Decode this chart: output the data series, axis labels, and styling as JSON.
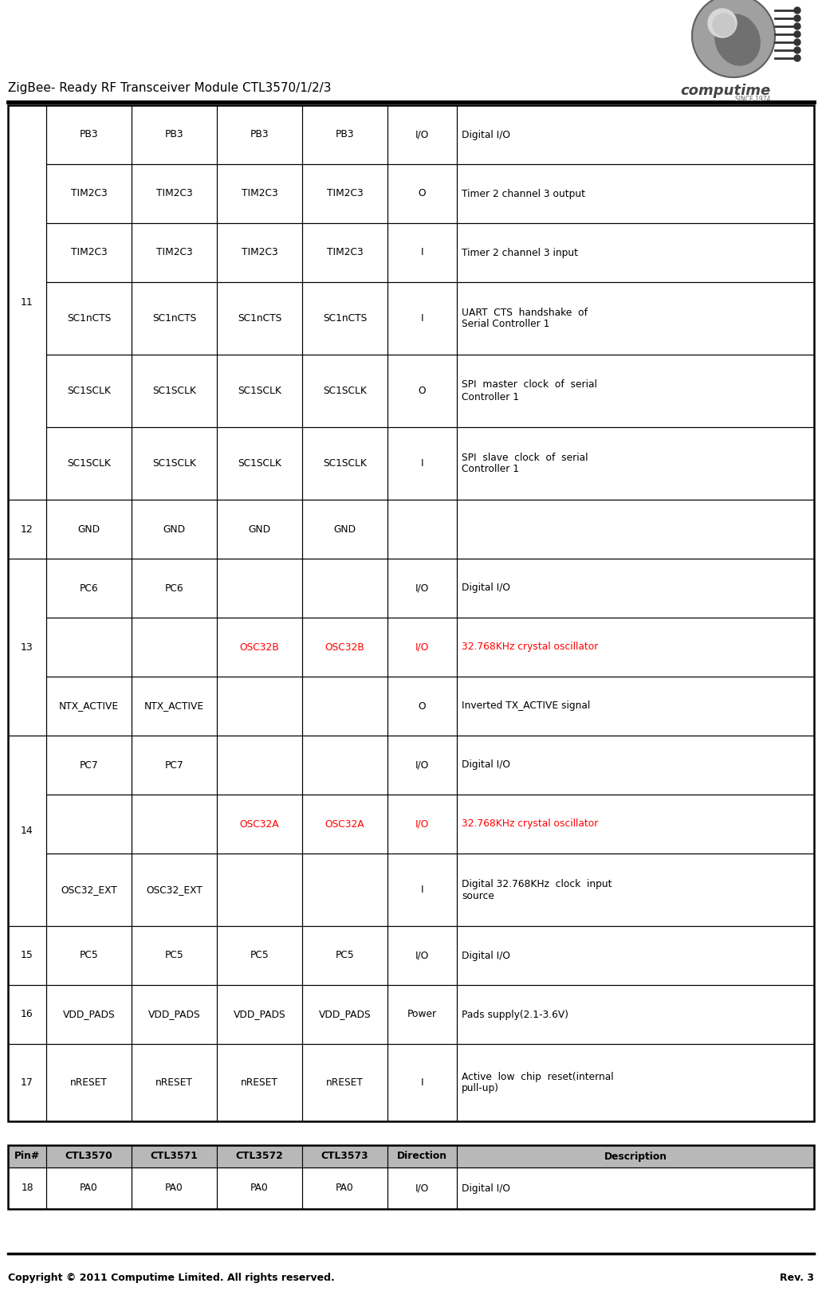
{
  "title": "ZigBee- Ready RF Transceiver Module CTL3570/1/2/3",
  "footer_left": "Copyright © 2011 Computime Limited. All rights reserved.",
  "footer_right": "Rev. 3",
  "rows": [
    {
      "pin": "11",
      "cells": [
        {
          "ctl3570": "PB3",
          "ctl3571": "PB3",
          "ctl3572": "PB3",
          "ctl3573": "PB3",
          "dir": "I/O",
          "desc": "Digital I/O",
          "color": "black"
        },
        {
          "ctl3570": "TIM2C3",
          "ctl3571": "TIM2C3",
          "ctl3572": "TIM2C3",
          "ctl3573": "TIM2C3",
          "dir": "O",
          "desc": "Timer 2 channel 3 output",
          "color": "black"
        },
        {
          "ctl3570": "TIM2C3",
          "ctl3571": "TIM2C3",
          "ctl3572": "TIM2C3",
          "ctl3573": "TIM2C3",
          "dir": "I",
          "desc": "Timer 2 channel 3 input",
          "color": "black"
        },
        {
          "ctl3570": "SC1nCTS",
          "ctl3571": "SC1nCTS",
          "ctl3572": "SC1nCTS",
          "ctl3573": "SC1nCTS",
          "dir": "I",
          "desc": "UART  CTS  handshake  of\nSerial Controller 1",
          "color": "black"
        },
        {
          "ctl3570": "SC1SCLK",
          "ctl3571": "SC1SCLK",
          "ctl3572": "SC1SCLK",
          "ctl3573": "SC1SCLK",
          "dir": "O",
          "desc": "SPI  master  clock  of  serial\nController 1",
          "color": "black"
        },
        {
          "ctl3570": "SC1SCLK",
          "ctl3571": "SC1SCLK",
          "ctl3572": "SC1SCLK",
          "ctl3573": "SC1SCLK",
          "dir": "I",
          "desc": "SPI  slave  clock  of  serial\nController 1",
          "color": "black"
        }
      ]
    },
    {
      "pin": "12",
      "cells": [
        {
          "ctl3570": "GND",
          "ctl3571": "GND",
          "ctl3572": "GND",
          "ctl3573": "GND",
          "dir": "",
          "desc": "",
          "color": "black"
        }
      ]
    },
    {
      "pin": "13",
      "cells": [
        {
          "ctl3570": "PC6",
          "ctl3571": "PC6",
          "ctl3572": "",
          "ctl3573": "",
          "dir": "I/O",
          "desc": "Digital I/O",
          "color": "black"
        },
        {
          "ctl3570": "",
          "ctl3571": "",
          "ctl3572": "OSC32B",
          "ctl3573": "OSC32B",
          "dir": "I/O",
          "desc": "32.768KHz crystal oscillator",
          "color": "red"
        },
        {
          "ctl3570": "NTX_ACTIVE",
          "ctl3571": "NTX_ACTIVE",
          "ctl3572": "",
          "ctl3573": "",
          "dir": "O",
          "desc": "Inverted TX_ACTIVE signal",
          "color": "black"
        }
      ]
    },
    {
      "pin": "14",
      "cells": [
        {
          "ctl3570": "PC7",
          "ctl3571": "PC7",
          "ctl3572": "",
          "ctl3573": "",
          "dir": "I/O",
          "desc": "Digital I/O",
          "color": "black"
        },
        {
          "ctl3570": "",
          "ctl3571": "",
          "ctl3572": "OSC32A",
          "ctl3573": "OSC32A",
          "dir": "I/O",
          "desc": "32.768KHz crystal oscillator",
          "color": "red"
        },
        {
          "ctl3570": "OSC32_EXT",
          "ctl3571": "OSC32_EXT",
          "ctl3572": "",
          "ctl3573": "",
          "dir": "I",
          "desc": "Digital 32.768KHz  clock  input\nsource",
          "color": "black"
        }
      ]
    },
    {
      "pin": "15",
      "cells": [
        {
          "ctl3570": "PC5",
          "ctl3571": "PC5",
          "ctl3572": "PC5",
          "ctl3573": "PC5",
          "dir": "I/O",
          "desc": "Digital I/O",
          "color": "black"
        }
      ]
    },
    {
      "pin": "16",
      "cells": [
        {
          "ctl3570": "VDD_PADS",
          "ctl3571": "VDD_PADS",
          "ctl3572": "VDD_PADS",
          "ctl3573": "VDD_PADS",
          "dir": "Power",
          "desc": "Pads supply(2.1-3.6V)",
          "color": "black"
        }
      ]
    },
    {
      "pin": "17",
      "cells": [
        {
          "ctl3570": "nRESET",
          "ctl3571": "nRESET",
          "ctl3572": "nRESET",
          "ctl3573": "nRESET",
          "dir": "I",
          "desc": "Active  low  chip  reset(internal\npull-up)",
          "color": "black"
        }
      ]
    }
  ],
  "bottom_header": [
    "Pin#",
    "CTL3570",
    "CTL3571",
    "CTL3572",
    "CTL3573",
    "Direction",
    "Description"
  ],
  "bottom_rows": [
    {
      "pin": "18",
      "cells": [
        {
          "ctl3570": "PA0",
          "ctl3571": "PA0",
          "ctl3572": "PA0",
          "ctl3573": "PA0",
          "dir": "I/O",
          "desc": "Digital I/O",
          "color": "black"
        }
      ]
    }
  ],
  "red_color": "#ff0000",
  "black_color": "#000000",
  "header_bg": "#b8b8b8",
  "white": "#ffffff"
}
